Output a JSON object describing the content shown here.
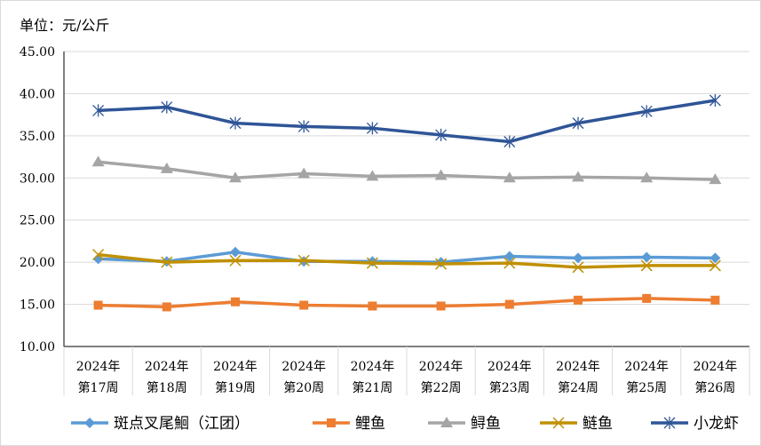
{
  "chart_data": {
    "type": "line",
    "unit_label": "单位：元/公斤",
    "categories": [
      [
        "2024年",
        "第17周"
      ],
      [
        "2024年",
        "第18周"
      ],
      [
        "2024年",
        "第19周"
      ],
      [
        "2024年",
        "第20周"
      ],
      [
        "2024年",
        "第21周"
      ],
      [
        "2024年",
        "第22周"
      ],
      [
        "2024年",
        "第23周"
      ],
      [
        "2024年",
        "第24周"
      ],
      [
        "2024年",
        "第25周"
      ],
      [
        "2024年",
        "第26周"
      ]
    ],
    "ylim": [
      10,
      45
    ],
    "yticks": [
      "10.00",
      "15.00",
      "20.00",
      "25.00",
      "30.00",
      "35.00",
      "40.00",
      "45.00"
    ],
    "ytick_values": [
      10,
      15,
      20,
      25,
      30,
      35,
      40,
      45
    ],
    "legend_position": "bottom",
    "series": [
      {
        "name": "斑点叉尾鮰（江团）",
        "color": "#5B9BD5",
        "marker": "diamond",
        "values": [
          20.4,
          20.1,
          21.2,
          20.1,
          20.1,
          20.0,
          20.7,
          20.5,
          20.6,
          20.5
        ]
      },
      {
        "name": "鲤鱼",
        "color": "#ED7D31",
        "marker": "square",
        "values": [
          14.9,
          14.7,
          15.3,
          14.9,
          14.8,
          14.8,
          15.0,
          15.5,
          15.7,
          15.5
        ]
      },
      {
        "name": "鲟鱼",
        "color": "#A5A5A5",
        "marker": "triangle",
        "values": [
          31.9,
          31.1,
          30.0,
          30.5,
          30.2,
          30.3,
          30.0,
          30.1,
          30.0,
          29.8
        ]
      },
      {
        "name": "鲢鱼",
        "color": "#C09000",
        "marker": "x",
        "values": [
          20.9,
          20.0,
          20.2,
          20.2,
          19.9,
          19.8,
          19.9,
          19.4,
          19.6,
          19.6
        ]
      },
      {
        "name": "小龙虾",
        "color": "#2F5597",
        "marker": "star",
        "values": [
          38.0,
          38.4,
          36.5,
          36.1,
          35.9,
          35.1,
          34.3,
          36.5,
          37.9,
          39.2
        ]
      }
    ]
  }
}
